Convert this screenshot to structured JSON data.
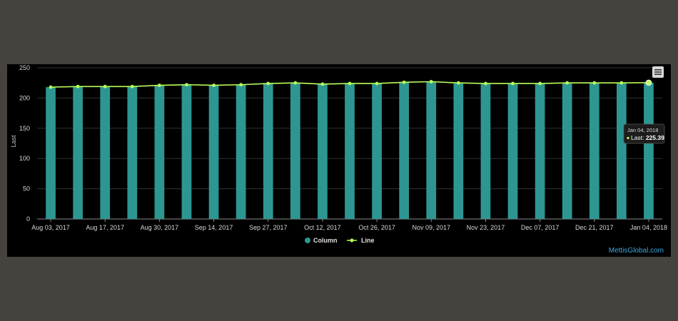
{
  "chart_data": {
    "type": "bar",
    "title": "",
    "xlabel": "",
    "ylabel": "Last",
    "ylim": [
      0,
      250
    ],
    "yticks": [
      0,
      50,
      100,
      150,
      200,
      250
    ],
    "grid": true,
    "legend_position": "bottom-center",
    "colors": {
      "column": "#2e9691",
      "line": "#b9ff5a"
    },
    "x_tick_labels": [
      "Aug 03, 2017",
      "Aug 17, 2017",
      "Aug 30, 2017",
      "Sep 14, 2017",
      "Sep 27, 2017",
      "Oct 12, 2017",
      "Oct 26, 2017",
      "Nov 09, 2017",
      "Nov 23, 2017",
      "Dec 07, 2017",
      "Dec 21, 2017",
      "Jan 04, 2018"
    ],
    "series": [
      {
        "name": "Column",
        "type": "column",
        "values": [
          218,
          219,
          219,
          219,
          221,
          222,
          221,
          222,
          224,
          225,
          223,
          224,
          224,
          226,
          227,
          225,
          224,
          224,
          224,
          225,
          225,
          225,
          225.39
        ]
      },
      {
        "name": "Line",
        "type": "line",
        "values": [
          218,
          219,
          219,
          219,
          221,
          222,
          221,
          222,
          224,
          225,
          223,
          224,
          224,
          226,
          227,
          225,
          224,
          224,
          224,
          225,
          225,
          225,
          225.39
        ]
      }
    ],
    "tooltip": {
      "date": "Jan 04, 2018",
      "label": "Last:",
      "value": "225.39"
    }
  },
  "credit": "MettisGlobal.com",
  "menu_icon": "hamburger-menu-icon"
}
